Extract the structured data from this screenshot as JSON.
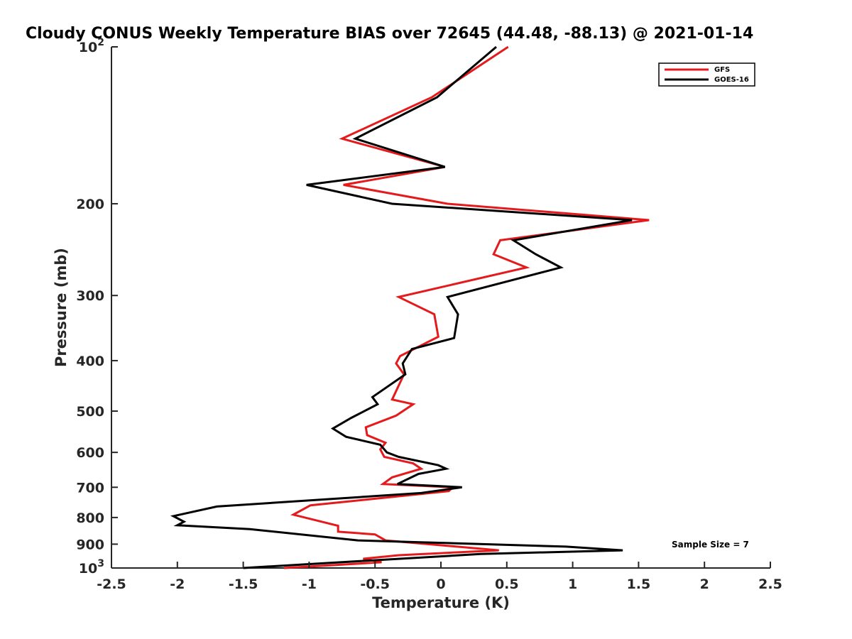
{
  "chart_data": {
    "type": "line",
    "title": "Cloudy CONUS Weekly Temperature BIAS over 72645 (44.48, -88.13) @ 2021-01-14",
    "xlabel": "Temperature (K)",
    "ylabel": "Pressure (mb)",
    "xlim": [
      -2.5,
      2.5
    ],
    "ylim": [
      100,
      1000
    ],
    "y_scale": "log",
    "y_reversed": true,
    "grid": false,
    "legend_position": "top-right",
    "annotation": "Sample Size = 7",
    "x_ticks": [
      {
        "value": -2.5,
        "label": "-2.5"
      },
      {
        "value": -2,
        "label": "-2"
      },
      {
        "value": -1.5,
        "label": "-1.5"
      },
      {
        "value": -1,
        "label": "-1"
      },
      {
        "value": -0.5,
        "label": "-0.5"
      },
      {
        "value": 0,
        "label": "0"
      },
      {
        "value": 0.5,
        "label": "0.5"
      },
      {
        "value": 1,
        "label": "1"
      },
      {
        "value": 1.5,
        "label": "1.5"
      },
      {
        "value": 2,
        "label": "2"
      },
      {
        "value": 2.5,
        "label": "2.5"
      }
    ],
    "y_ticks": [
      {
        "value": 100,
        "base": "10",
        "exp": "2"
      },
      {
        "value": 200,
        "label": "200"
      },
      {
        "value": 300,
        "label": "300"
      },
      {
        "value": 400,
        "label": "400"
      },
      {
        "value": 500,
        "label": "500"
      },
      {
        "value": 600,
        "label": "600"
      },
      {
        "value": 700,
        "label": "700"
      },
      {
        "value": 800,
        "label": "800"
      },
      {
        "value": 900,
        "label": "900"
      },
      {
        "value": 1000,
        "base": "10",
        "exp": "3"
      }
    ],
    "series": [
      {
        "name": "GFS",
        "color": "#e41a1c",
        "points": [
          [
            0.51,
            100
          ],
          [
            -0.07,
            125
          ],
          [
            -0.75,
            150
          ],
          [
            0.03,
            170
          ],
          [
            -0.74,
            184
          ],
          [
            0.05,
            200
          ],
          [
            1.58,
            215
          ],
          [
            0.45,
            235
          ],
          [
            0.4,
            250
          ],
          [
            0.65,
            265
          ],
          [
            -0.32,
            302
          ],
          [
            -0.05,
            326
          ],
          [
            -0.02,
            360
          ],
          [
            -0.31,
            392
          ],
          [
            -0.34,
            405
          ],
          [
            -0.28,
            425
          ],
          [
            -0.37,
            475
          ],
          [
            -0.21,
            485
          ],
          [
            -0.34,
            510
          ],
          [
            -0.57,
            537
          ],
          [
            -0.56,
            556
          ],
          [
            -0.42,
            575
          ],
          [
            -0.46,
            592
          ],
          [
            -0.43,
            612
          ],
          [
            -0.21,
            630
          ],
          [
            -0.15,
            645
          ],
          [
            -0.37,
            670
          ],
          [
            -0.44,
            690
          ],
          [
            0.09,
            700
          ],
          [
            0.06,
            712
          ],
          [
            -0.99,
            758
          ],
          [
            -1.12,
            790
          ],
          [
            -0.78,
            830
          ],
          [
            -0.78,
            852
          ],
          [
            -0.5,
            862
          ],
          [
            -0.42,
            885
          ],
          [
            0.44,
            925
          ],
          [
            -0.32,
            945
          ],
          [
            -0.59,
            960
          ],
          [
            -0.45,
            975
          ],
          [
            -1.19,
            1000
          ]
        ]
      },
      {
        "name": "GOES-16",
        "color": "#000000",
        "points": [
          [
            0.42,
            100
          ],
          [
            -0.03,
            125
          ],
          [
            -0.65,
            150
          ],
          [
            0.03,
            170
          ],
          [
            -1.02,
            184
          ],
          [
            -0.37,
            200
          ],
          [
            1.45,
            215
          ],
          [
            0.55,
            235
          ],
          [
            0.72,
            250
          ],
          [
            0.91,
            265
          ],
          [
            0.05,
            302
          ],
          [
            0.13,
            326
          ],
          [
            0.1,
            362
          ],
          [
            -0.22,
            380
          ],
          [
            -0.29,
            405
          ],
          [
            -0.27,
            425
          ],
          [
            -0.52,
            470
          ],
          [
            -0.48,
            485
          ],
          [
            -0.68,
            515
          ],
          [
            -0.82,
            540
          ],
          [
            -0.72,
            560
          ],
          [
            -0.46,
            580
          ],
          [
            -0.41,
            600
          ],
          [
            -0.32,
            612
          ],
          [
            -0.02,
            635
          ],
          [
            0.04,
            645
          ],
          [
            -0.17,
            660
          ],
          [
            -0.33,
            690
          ],
          [
            0.16,
            700
          ],
          [
            -0.15,
            718
          ],
          [
            -1.7,
            762
          ],
          [
            -2.03,
            795
          ],
          [
            -1.95,
            815
          ],
          [
            -2.0,
            828
          ],
          [
            -1.45,
            842
          ],
          [
            -0.63,
            885
          ],
          [
            0.95,
            910
          ],
          [
            1.38,
            925
          ],
          [
            0.3,
            940
          ],
          [
            -1.5,
            1000
          ]
        ]
      }
    ]
  }
}
